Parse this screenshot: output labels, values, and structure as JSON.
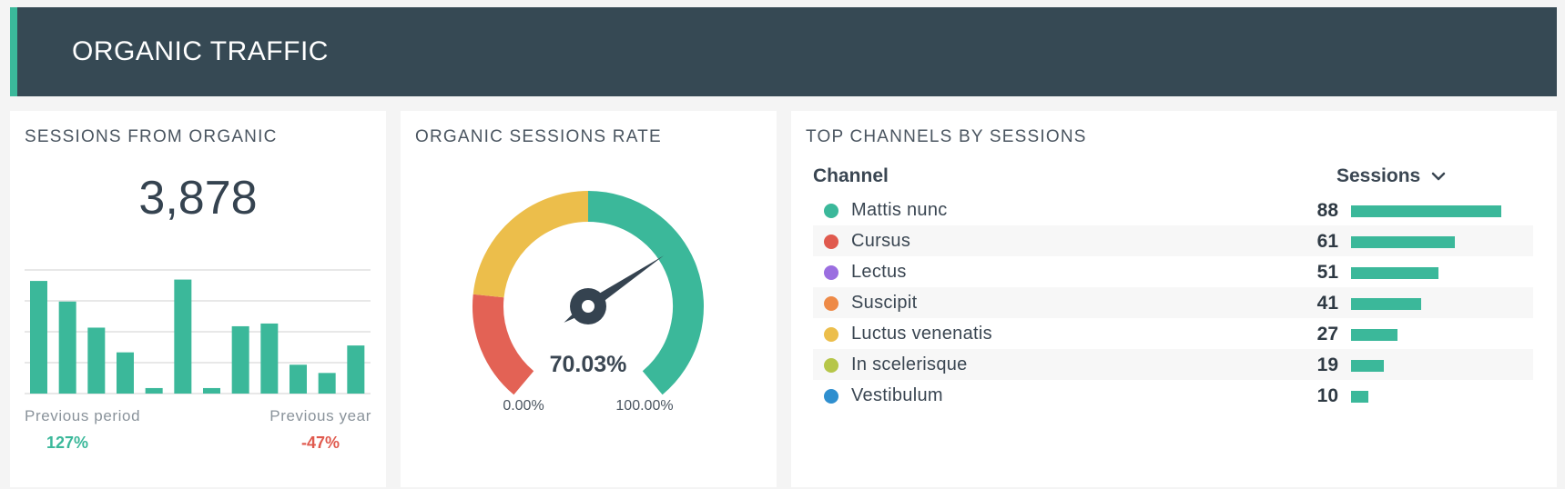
{
  "header": {
    "title": "ORGANIC TRAFFIC"
  },
  "colors": {
    "header_bg": "#364954",
    "accent": "#3bb89a",
    "negative": "#e05a4e",
    "gauge_red": "#e36255",
    "gauge_yellow": "#ecbe4b",
    "gauge_green": "#3bb89a",
    "needle": "#354350"
  },
  "sessions_card": {
    "title": "SESSIONS FROM ORGANIC",
    "total": "3,878",
    "previous_period_label": "Previous period",
    "previous_period_value": "127%",
    "previous_year_label": "Previous year",
    "previous_year_value": "-47%"
  },
  "rate_card": {
    "title": "ORGANIC SESSIONS RATE",
    "value_text": "70.03%",
    "min_label": "0.00%",
    "max_label": "100.00%"
  },
  "channels_card": {
    "title": "TOP CHANNELS BY SESSIONS",
    "col_channel": "Channel",
    "col_sessions": "Sessions",
    "sort_icon": "chevron-down-icon",
    "rows": [
      {
        "label": "Mattis nunc",
        "value": "88",
        "color": "#3bb89a"
      },
      {
        "label": "Cursus",
        "value": "61",
        "color": "#e05a4e"
      },
      {
        "label": "Lectus",
        "value": "51",
        "color": "#9b6ee0"
      },
      {
        "label": "Suscipit",
        "value": "41",
        "color": "#ee8a47"
      },
      {
        "label": "Luctus venenatis",
        "value": "27",
        "color": "#ecbe4b"
      },
      {
        "label": "In scelerisque",
        "value": "19",
        "color": "#b6c649"
      },
      {
        "label": "Vestibulum",
        "value": "10",
        "color": "#2f8fcf"
      }
    ]
  },
  "chart_data": [
    {
      "type": "bar",
      "values": [
        82,
        67,
        48,
        30,
        4,
        83,
        4,
        49,
        51,
        21,
        15,
        35
      ],
      "ylim": [
        0,
        90
      ],
      "grid": true
    },
    {
      "type": "gauge",
      "value": 70.03,
      "range": [
        0,
        100
      ],
      "bands": [
        {
          "to": 20,
          "color": "#e36255"
        },
        {
          "to": 50,
          "color": "#ecbe4b"
        },
        {
          "to": 100,
          "color": "#3bb89a"
        }
      ]
    },
    {
      "type": "bar",
      "orientation": "horizontal",
      "categories": [
        "Mattis nunc",
        "Cursus",
        "Lectus",
        "Suscipit",
        "Luctus venenatis",
        "In scelerisque",
        "Vestibulum"
      ],
      "values": [
        88,
        61,
        51,
        41,
        27,
        19,
        10
      ]
    }
  ]
}
